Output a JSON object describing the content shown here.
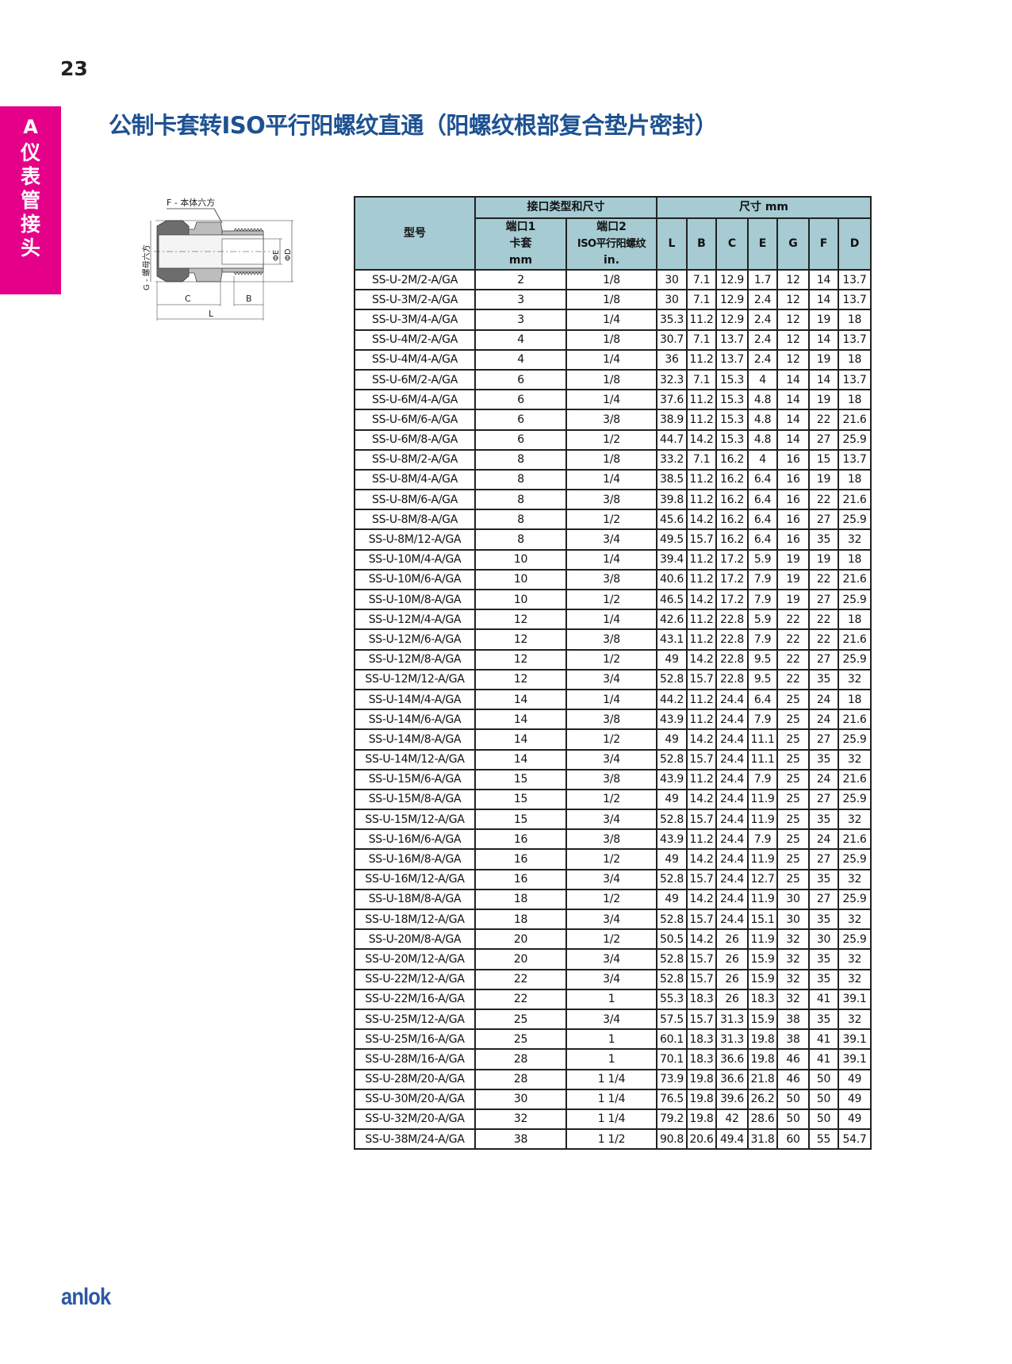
{
  "page_number": "23",
  "sidebar": {
    "letter": "A",
    "section": "仪表管接头"
  },
  "title": "公制卡套转ISO平行阳螺纹直通（阳螺纹根部复合垫片密封）",
  "diagram": {
    "label_f": "F - 本体六方",
    "label_g": "G - 螺母六方",
    "label_c": "C",
    "label_b": "B",
    "label_l": "L",
    "label_e": "ΦE",
    "label_d": "ΦD"
  },
  "table": {
    "header_model": "型号",
    "header_port_group": "接口类型和尺寸",
    "header_dim_group": "尺寸 mm",
    "header_port1": [
      "端口1",
      "卡套",
      "mm"
    ],
    "header_port2": [
      "端口2",
      "ISO平行阳螺纹",
      "in."
    ],
    "dim_columns": [
      "L",
      "B",
      "C",
      "E",
      "G",
      "F",
      "D"
    ],
    "rows": [
      [
        "SS-U-2M/2-A/GA",
        "2",
        "1/8",
        "30",
        "7.1",
        "12.9",
        "1.7",
        "12",
        "14",
        "13.7"
      ],
      [
        "SS-U-3M/2-A/GA",
        "3",
        "1/8",
        "30",
        "7.1",
        "12.9",
        "2.4",
        "12",
        "14",
        "13.7"
      ],
      [
        "SS-U-3M/4-A/GA",
        "3",
        "1/4",
        "35.3",
        "11.2",
        "12.9",
        "2.4",
        "12",
        "19",
        "18"
      ],
      [
        "SS-U-4M/2-A/GA",
        "4",
        "1/8",
        "30.7",
        "7.1",
        "13.7",
        "2.4",
        "12",
        "14",
        "13.7"
      ],
      [
        "SS-U-4M/4-A/GA",
        "4",
        "1/4",
        "36",
        "11.2",
        "13.7",
        "2.4",
        "12",
        "19",
        "18"
      ],
      [
        "SS-U-6M/2-A/GA",
        "6",
        "1/8",
        "32.3",
        "7.1",
        "15.3",
        "4",
        "14",
        "14",
        "13.7"
      ],
      [
        "SS-U-6M/4-A/GA",
        "6",
        "1/4",
        "37.6",
        "11.2",
        "15.3",
        "4.8",
        "14",
        "19",
        "18"
      ],
      [
        "SS-U-6M/6-A/GA",
        "6",
        "3/8",
        "38.9",
        "11.2",
        "15.3",
        "4.8",
        "14",
        "22",
        "21.6"
      ],
      [
        "SS-U-6M/8-A/GA",
        "6",
        "1/2",
        "44.7",
        "14.2",
        "15.3",
        "4.8",
        "14",
        "27",
        "25.9"
      ],
      [
        "SS-U-8M/2-A/GA",
        "8",
        "1/8",
        "33.2",
        "7.1",
        "16.2",
        "4",
        "16",
        "15",
        "13.7"
      ],
      [
        "SS-U-8M/4-A/GA",
        "8",
        "1/4",
        "38.5",
        "11.2",
        "16.2",
        "6.4",
        "16",
        "19",
        "18"
      ],
      [
        "SS-U-8M/6-A/GA",
        "8",
        "3/8",
        "39.8",
        "11.2",
        "16.2",
        "6.4",
        "16",
        "22",
        "21.6"
      ],
      [
        "SS-U-8M/8-A/GA",
        "8",
        "1/2",
        "45.6",
        "14.2",
        "16.2",
        "6.4",
        "16",
        "27",
        "25.9"
      ],
      [
        "SS-U-8M/12-A/GA",
        "8",
        "3/4",
        "49.5",
        "15.7",
        "16.2",
        "6.4",
        "16",
        "35",
        "32"
      ],
      [
        "SS-U-10M/4-A/GA",
        "10",
        "1/4",
        "39.4",
        "11.2",
        "17.2",
        "5.9",
        "19",
        "19",
        "18"
      ],
      [
        "SS-U-10M/6-A/GA",
        "10",
        "3/8",
        "40.6",
        "11.2",
        "17.2",
        "7.9",
        "19",
        "22",
        "21.6"
      ],
      [
        "SS-U-10M/8-A/GA",
        "10",
        "1/2",
        "46.5",
        "14.2",
        "17.2",
        "7.9",
        "19",
        "27",
        "25.9"
      ],
      [
        "SS-U-12M/4-A/GA",
        "12",
        "1/4",
        "42.6",
        "11.2",
        "22.8",
        "5.9",
        "22",
        "22",
        "18"
      ],
      [
        "SS-U-12M/6-A/GA",
        "12",
        "3/8",
        "43.1",
        "11.2",
        "22.8",
        "7.9",
        "22",
        "22",
        "21.6"
      ],
      [
        "SS-U-12M/8-A/GA",
        "12",
        "1/2",
        "49",
        "14.2",
        "22.8",
        "9.5",
        "22",
        "27",
        "25.9"
      ],
      [
        "SS-U-12M/12-A/GA",
        "12",
        "3/4",
        "52.8",
        "15.7",
        "22.8",
        "9.5",
        "22",
        "35",
        "32"
      ],
      [
        "SS-U-14M/4-A/GA",
        "14",
        "1/4",
        "44.2",
        "11.2",
        "24.4",
        "6.4",
        "25",
        "24",
        "18"
      ],
      [
        "SS-U-14M/6-A/GA",
        "14",
        "3/8",
        "43.9",
        "11.2",
        "24.4",
        "7.9",
        "25",
        "24",
        "21.6"
      ],
      [
        "SS-U-14M/8-A/GA",
        "14",
        "1/2",
        "49",
        "14.2",
        "24.4",
        "11.1",
        "25",
        "27",
        "25.9"
      ],
      [
        "SS-U-14M/12-A/GA",
        "14",
        "3/4",
        "52.8",
        "15.7",
        "24.4",
        "11.1",
        "25",
        "35",
        "32"
      ],
      [
        "SS-U-15M/6-A/GA",
        "15",
        "3/8",
        "43.9",
        "11.2",
        "24.4",
        "7.9",
        "25",
        "24",
        "21.6"
      ],
      [
        "SS-U-15M/8-A/GA",
        "15",
        "1/2",
        "49",
        "14.2",
        "24.4",
        "11.9",
        "25",
        "27",
        "25.9"
      ],
      [
        "SS-U-15M/12-A/GA",
        "15",
        "3/4",
        "52.8",
        "15.7",
        "24.4",
        "11.9",
        "25",
        "35",
        "32"
      ],
      [
        "SS-U-16M/6-A/GA",
        "16",
        "3/8",
        "43.9",
        "11.2",
        "24.4",
        "7.9",
        "25",
        "24",
        "21.6"
      ],
      [
        "SS-U-16M/8-A/GA",
        "16",
        "1/2",
        "49",
        "14.2",
        "24.4",
        "11.9",
        "25",
        "27",
        "25.9"
      ],
      [
        "SS-U-16M/12-A/GA",
        "16",
        "3/4",
        "52.8",
        "15.7",
        "24.4",
        "12.7",
        "25",
        "35",
        "32"
      ],
      [
        "SS-U-18M/8-A/GA",
        "18",
        "1/2",
        "49",
        "14.2",
        "24.4",
        "11.9",
        "30",
        "27",
        "25.9"
      ],
      [
        "SS-U-18M/12-A/GA",
        "18",
        "3/4",
        "52.8",
        "15.7",
        "24.4",
        "15.1",
        "30",
        "35",
        "32"
      ],
      [
        "SS-U-20M/8-A/GA",
        "20",
        "1/2",
        "50.5",
        "14.2",
        "26",
        "11.9",
        "32",
        "30",
        "25.9"
      ],
      [
        "SS-U-20M/12-A/GA",
        "20",
        "3/4",
        "52.8",
        "15.7",
        "26",
        "15.9",
        "32",
        "35",
        "32"
      ],
      [
        "SS-U-22M/12-A/GA",
        "22",
        "3/4",
        "52.8",
        "15.7",
        "26",
        "15.9",
        "32",
        "35",
        "32"
      ],
      [
        "SS-U-22M/16-A/GA",
        "22",
        "1",
        "55.3",
        "18.3",
        "26",
        "18.3",
        "32",
        "41",
        "39.1"
      ],
      [
        "SS-U-25M/12-A/GA",
        "25",
        "3/4",
        "57.5",
        "15.7",
        "31.3",
        "15.9",
        "38",
        "35",
        "32"
      ],
      [
        "SS-U-25M/16-A/GA",
        "25",
        "1",
        "60.1",
        "18.3",
        "31.3",
        "19.8",
        "38",
        "41",
        "39.1"
      ],
      [
        "SS-U-28M/16-A/GA",
        "28",
        "1",
        "70.1",
        "18.3",
        "36.6",
        "19.8",
        "46",
        "41",
        "39.1"
      ],
      [
        "SS-U-28M/20-A/GA",
        "28",
        "1 1/4",
        "73.9",
        "19.8",
        "36.6",
        "21.8",
        "46",
        "50",
        "49"
      ],
      [
        "SS-U-30M/20-A/GA",
        "30",
        "1 1/4",
        "76.5",
        "19.8",
        "39.6",
        "26.2",
        "50",
        "50",
        "49"
      ],
      [
        "SS-U-32M/20-A/GA",
        "32",
        "1 1/4",
        "79.2",
        "19.8",
        "42",
        "28.6",
        "50",
        "50",
        "49"
      ],
      [
        "SS-U-38M/24-A/GA",
        "38",
        "1 1/2",
        "90.8",
        "20.6",
        "49.4",
        "31.8",
        "60",
        "55",
        "54.7"
      ]
    ]
  },
  "logo": "anlok",
  "colors": {
    "accent_pink": "#e5008a",
    "title_blue": "#1d5192",
    "header_bg": "#a6cbd2",
    "logo_blue": "#2b58a6"
  }
}
